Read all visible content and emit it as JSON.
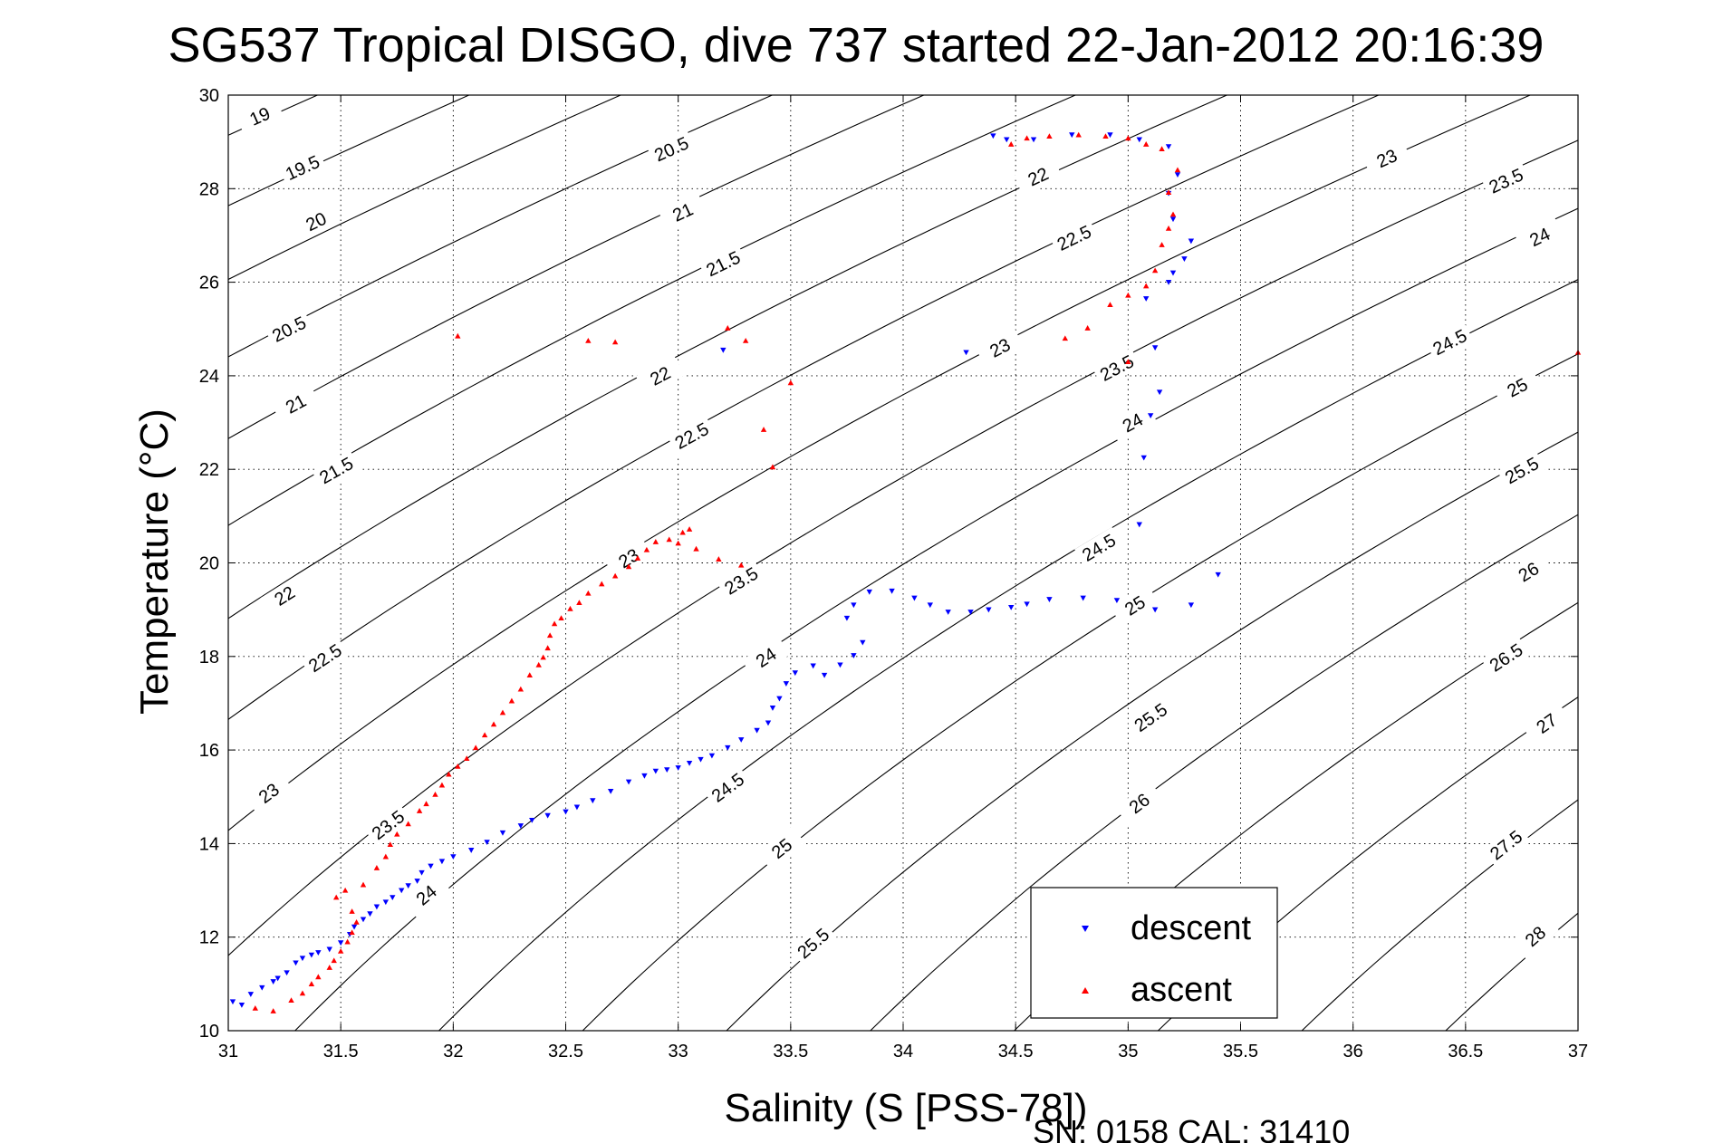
{
  "chart_data": {
    "type": "scatter",
    "title": "SG537 Tropical DISGO, dive 737 started 22-Jan-2012 20:16:39",
    "xlabel": "Salinity (S [PSS-78])",
    "ylabel": "Temperature (°C)",
    "xlim": [
      31,
      37
    ],
    "ylim": [
      10,
      30
    ],
    "xticks": [
      "31",
      "31.5",
      "32",
      "32.5",
      "33",
      "33.5",
      "34",
      "34.5",
      "35",
      "35.5",
      "36",
      "36.5",
      "37"
    ],
    "yticks": [
      "10",
      "12",
      "14",
      "16",
      "18",
      "20",
      "22",
      "24",
      "26",
      "28",
      "30"
    ],
    "grid": true,
    "legend_position": "bottom-right",
    "footer": "SN: 0158  CAL: 31410",
    "contours": {
      "levels": [
        19,
        19.5,
        20,
        20.5,
        21,
        21.5,
        22,
        22.5,
        23,
        23.5,
        24,
        24.5,
        25,
        25.5,
        26,
        26.5,
        27,
        27.5,
        28
      ],
      "labels": [
        {
          "text": "19",
          "s": 31.14,
          "t": 29.55
        },
        {
          "text": "19.5",
          "s": 31.33,
          "t": 28.45
        },
        {
          "text": "20",
          "s": 31.39,
          "t": 27.3
        },
        {
          "text": "20.5",
          "s": 31.27,
          "t": 25.0
        },
        {
          "text": "21",
          "s": 31.3,
          "t": 23.4
        },
        {
          "text": "21.5",
          "s": 31.48,
          "t": 21.98
        },
        {
          "text": "22",
          "s": 31.25,
          "t": 19.3
        },
        {
          "text": "22.5",
          "s": 31.43,
          "t": 17.97
        },
        {
          "text": "23",
          "s": 31.18,
          "t": 15.08
        },
        {
          "text": "23.5",
          "s": 31.71,
          "t": 14.4
        },
        {
          "text": "24",
          "s": 31.88,
          "t": 12.9
        },
        {
          "text": "20.5",
          "s": 32.97,
          "t": 28.85
        },
        {
          "text": "21",
          "s": 33.02,
          "t": 27.5
        },
        {
          "text": "21.5",
          "s": 33.2,
          "t": 26.4
        },
        {
          "text": "22",
          "s": 32.92,
          "t": 24.0
        },
        {
          "text": "22.5",
          "s": 33.06,
          "t": 22.72
        },
        {
          "text": "23",
          "s": 32.78,
          "t": 20.1
        },
        {
          "text": "23.5",
          "s": 33.28,
          "t": 19.62
        },
        {
          "text": "24",
          "s": 33.39,
          "t": 17.98
        },
        {
          "text": "24.5",
          "s": 33.22,
          "t": 15.2
        },
        {
          "text": "25",
          "s": 33.46,
          "t": 13.9
        },
        {
          "text": "25.5",
          "s": 33.6,
          "t": 11.87
        },
        {
          "text": "22",
          "s": 34.6,
          "t": 28.26
        },
        {
          "text": "22.5",
          "s": 34.76,
          "t": 26.95
        },
        {
          "text": "23",
          "s": 34.43,
          "t": 24.6
        },
        {
          "text": "23.5",
          "s": 34.95,
          "t": 24.17
        },
        {
          "text": "24",
          "s": 35.02,
          "t": 23.0
        },
        {
          "text": "24.5",
          "s": 34.87,
          "t": 20.33
        },
        {
          "text": "25",
          "s": 35.03,
          "t": 19.09
        },
        {
          "text": "25.5",
          "s": 35.1,
          "t": 16.7
        },
        {
          "text": "26",
          "s": 35.05,
          "t": 14.86
        },
        {
          "text": "23",
          "s": 36.15,
          "t": 28.65
        },
        {
          "text": "23.5",
          "s": 36.68,
          "t": 28.17
        },
        {
          "text": "24",
          "s": 36.83,
          "t": 26.97
        },
        {
          "text": "24.5",
          "s": 36.43,
          "t": 24.72
        },
        {
          "text": "25",
          "s": 36.73,
          "t": 23.75
        },
        {
          "text": "25.5",
          "s": 36.75,
          "t": 21.98
        },
        {
          "text": "26",
          "s": 36.78,
          "t": 19.81
        },
        {
          "text": "26.5",
          "s": 36.68,
          "t": 17.98
        },
        {
          "text": "27",
          "s": 36.86,
          "t": 16.57
        },
        {
          "text": "27.5",
          "s": 36.68,
          "t": 13.97
        },
        {
          "text": "28",
          "s": 36.81,
          "t": 12.02
        }
      ]
    },
    "series": [
      {
        "name": "descent",
        "color": "#0000ff",
        "marker": "triangle-down",
        "points": [
          [
            31.02,
            10.62
          ],
          [
            31.06,
            10.55
          ],
          [
            31.1,
            10.78
          ],
          [
            31.15,
            10.92
          ],
          [
            31.2,
            11.05
          ],
          [
            31.22,
            11.12
          ],
          [
            31.26,
            11.24
          ],
          [
            31.3,
            11.45
          ],
          [
            31.33,
            11.55
          ],
          [
            31.37,
            11.62
          ],
          [
            31.4,
            11.67
          ],
          [
            31.45,
            11.74
          ],
          [
            31.5,
            11.88
          ],
          [
            31.54,
            12.06
          ],
          [
            31.56,
            12.22
          ],
          [
            31.6,
            12.38
          ],
          [
            31.63,
            12.5
          ],
          [
            31.66,
            12.65
          ],
          [
            31.7,
            12.75
          ],
          [
            31.73,
            12.85
          ],
          [
            31.77,
            13.0
          ],
          [
            31.8,
            13.1
          ],
          [
            31.84,
            13.2
          ],
          [
            31.86,
            13.38
          ],
          [
            31.9,
            13.52
          ],
          [
            31.95,
            13.62
          ],
          [
            32.0,
            13.72
          ],
          [
            32.08,
            13.86
          ],
          [
            32.15,
            14.03
          ],
          [
            32.22,
            14.23
          ],
          [
            32.3,
            14.38
          ],
          [
            32.35,
            14.5
          ],
          [
            32.42,
            14.6
          ],
          [
            32.5,
            14.68
          ],
          [
            32.55,
            14.78
          ],
          [
            32.62,
            14.92
          ],
          [
            32.7,
            15.12
          ],
          [
            32.78,
            15.32
          ],
          [
            32.85,
            15.45
          ],
          [
            32.9,
            15.55
          ],
          [
            32.95,
            15.58
          ],
          [
            33.0,
            15.62
          ],
          [
            33.05,
            15.72
          ],
          [
            33.1,
            15.8
          ],
          [
            33.15,
            15.88
          ],
          [
            33.22,
            16.05
          ],
          [
            33.28,
            16.22
          ],
          [
            33.35,
            16.42
          ],
          [
            33.4,
            16.58
          ],
          [
            33.42,
            16.9
          ],
          [
            33.45,
            17.1
          ],
          [
            33.48,
            17.42
          ],
          [
            33.52,
            17.65
          ],
          [
            33.6,
            17.8
          ],
          [
            33.65,
            17.6
          ],
          [
            33.72,
            17.82
          ],
          [
            33.78,
            18.02
          ],
          [
            33.82,
            18.3
          ],
          [
            33.75,
            18.82
          ],
          [
            33.78,
            19.1
          ],
          [
            33.85,
            19.38
          ],
          [
            33.95,
            19.4
          ],
          [
            34.05,
            19.25
          ],
          [
            34.12,
            19.1
          ],
          [
            34.2,
            18.95
          ],
          [
            34.3,
            18.95
          ],
          [
            34.38,
            19.0
          ],
          [
            34.48,
            19.05
          ],
          [
            34.55,
            19.12
          ],
          [
            34.65,
            19.22
          ],
          [
            34.8,
            19.25
          ],
          [
            34.95,
            19.2
          ],
          [
            35.12,
            19.0
          ],
          [
            35.28,
            19.1
          ],
          [
            35.4,
            19.75
          ],
          [
            35.05,
            20.82
          ],
          [
            35.07,
            22.25
          ],
          [
            35.1,
            23.15
          ],
          [
            35.14,
            23.65
          ],
          [
            35.12,
            24.6
          ],
          [
            35.08,
            25.65
          ],
          [
            35.18,
            26.0
          ],
          [
            35.2,
            26.2
          ],
          [
            35.25,
            26.5
          ],
          [
            35.28,
            26.88
          ],
          [
            35.2,
            27.35
          ],
          [
            35.18,
            27.9
          ],
          [
            35.22,
            28.3
          ],
          [
            35.18,
            28.9
          ],
          [
            35.05,
            29.05
          ],
          [
            34.92,
            29.15
          ],
          [
            34.75,
            29.15
          ],
          [
            34.58,
            29.05
          ],
          [
            34.46,
            29.05
          ],
          [
            34.4,
            29.13
          ],
          [
            34.28,
            24.5
          ],
          [
            33.2,
            24.55
          ]
        ]
      },
      {
        "name": "ascent",
        "color": "#ff0000",
        "marker": "triangle-up",
        "points": [
          [
            31.12,
            10.48
          ],
          [
            31.2,
            10.42
          ],
          [
            31.28,
            10.65
          ],
          [
            31.33,
            10.8
          ],
          [
            31.37,
            11.0
          ],
          [
            31.4,
            11.15
          ],
          [
            31.45,
            11.35
          ],
          [
            31.47,
            11.5
          ],
          [
            31.5,
            11.7
          ],
          [
            31.53,
            11.9
          ],
          [
            31.55,
            12.1
          ],
          [
            31.57,
            12.32
          ],
          [
            31.55,
            12.55
          ],
          [
            31.48,
            12.85
          ],
          [
            31.52,
            13.0
          ],
          [
            31.6,
            13.12
          ],
          [
            31.66,
            13.48
          ],
          [
            31.7,
            13.72
          ],
          [
            31.72,
            13.98
          ],
          [
            31.75,
            14.2
          ],
          [
            31.8,
            14.42
          ],
          [
            31.85,
            14.7
          ],
          [
            31.88,
            14.85
          ],
          [
            31.92,
            15.05
          ],
          [
            31.95,
            15.25
          ],
          [
            31.98,
            15.48
          ],
          [
            32.02,
            15.65
          ],
          [
            32.06,
            15.82
          ],
          [
            32.1,
            16.05
          ],
          [
            32.14,
            16.32
          ],
          [
            32.18,
            16.55
          ],
          [
            32.22,
            16.8
          ],
          [
            32.26,
            17.05
          ],
          [
            32.3,
            17.3
          ],
          [
            32.34,
            17.6
          ],
          [
            32.38,
            17.82
          ],
          [
            32.4,
            17.98
          ],
          [
            32.42,
            18.18
          ],
          [
            32.43,
            18.45
          ],
          [
            32.45,
            18.7
          ],
          [
            32.48,
            18.82
          ],
          [
            32.52,
            19.02
          ],
          [
            32.56,
            19.15
          ],
          [
            32.6,
            19.35
          ],
          [
            32.66,
            19.55
          ],
          [
            32.72,
            19.72
          ],
          [
            32.78,
            19.92
          ],
          [
            32.82,
            20.1
          ],
          [
            32.86,
            20.28
          ],
          [
            32.9,
            20.45
          ],
          [
            32.96,
            20.5
          ],
          [
            33.0,
            20.42
          ],
          [
            33.02,
            20.65
          ],
          [
            33.05,
            20.72
          ],
          [
            33.08,
            20.3
          ],
          [
            33.18,
            20.08
          ],
          [
            33.28,
            19.95
          ],
          [
            33.38,
            22.85
          ],
          [
            33.42,
            22.05
          ],
          [
            33.5,
            23.85
          ],
          [
            32.02,
            24.85
          ],
          [
            32.6,
            24.75
          ],
          [
            32.72,
            24.72
          ],
          [
            33.22,
            25.02
          ],
          [
            33.3,
            24.75
          ],
          [
            34.72,
            24.8
          ],
          [
            34.82,
            25.02
          ],
          [
            34.92,
            25.52
          ],
          [
            35.0,
            25.72
          ],
          [
            35.08,
            25.92
          ],
          [
            35.12,
            26.25
          ],
          [
            35.15,
            26.8
          ],
          [
            35.18,
            27.15
          ],
          [
            35.2,
            27.45
          ],
          [
            35.18,
            27.92
          ],
          [
            35.22,
            28.4
          ],
          [
            35.15,
            28.85
          ],
          [
            35.08,
            28.95
          ],
          [
            35.0,
            29.08
          ],
          [
            34.9,
            29.12
          ],
          [
            34.78,
            29.15
          ],
          [
            34.65,
            29.12
          ],
          [
            34.55,
            29.08
          ],
          [
            34.48,
            28.95
          ],
          [
            35.0,
            24.3
          ],
          [
            37.0,
            24.5
          ]
        ]
      }
    ]
  }
}
